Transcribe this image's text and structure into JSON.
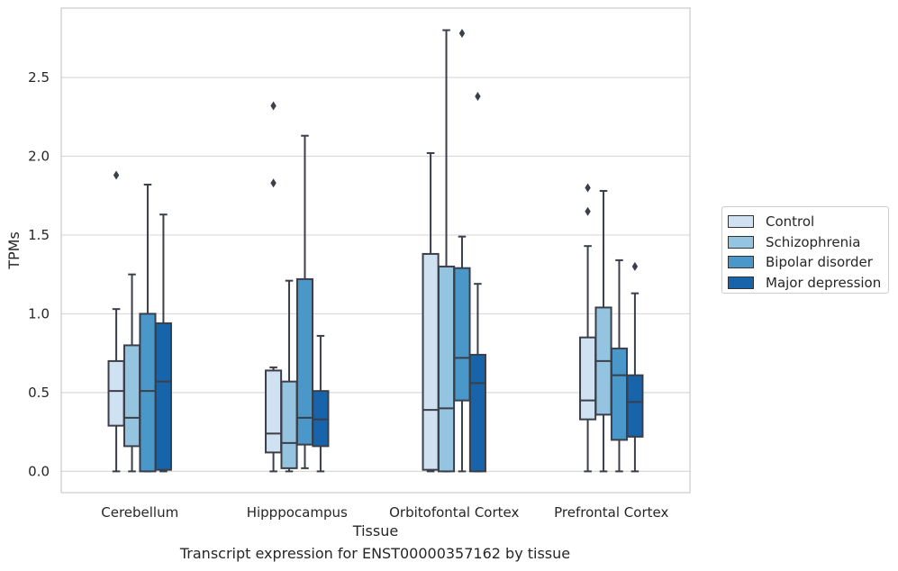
{
  "chart_data": {
    "type": "box",
    "xlabel": "Tissue",
    "ylabel": "TPMs",
    "ylim": [
      -0.135,
      2.94
    ],
    "yticks": [
      0.0,
      0.5,
      1.0,
      1.5,
      2.0,
      2.5
    ],
    "ytick_labels": [
      "0.0",
      "0.5",
      "1.0",
      "1.5",
      "2.0",
      "2.5"
    ],
    "categories": [
      "Cerebellum",
      "Hipppocampus",
      "Orbitofontal Cortex",
      "Prefrontal Cortex"
    ],
    "grid": "horizontal",
    "legend_position": "outside-right",
    "series": [
      {
        "name": "Control",
        "color": "#d0e1f2",
        "boxes": [
          {
            "whislo": 0.0,
            "q1": 0.29,
            "med": 0.51,
            "q3": 0.7,
            "whishi": 1.03,
            "fliers": [
              1.88
            ]
          },
          {
            "whislo": 0.0,
            "q1": 0.12,
            "med": 0.24,
            "q3": 0.64,
            "whishi": 0.66,
            "fliers": [
              1.83,
              2.32
            ]
          },
          {
            "whislo": 0.0,
            "q1": 0.01,
            "med": 0.39,
            "q3": 1.38,
            "whishi": 2.02,
            "fliers": []
          },
          {
            "whislo": 0.0,
            "q1": 0.33,
            "med": 0.45,
            "q3": 0.85,
            "whishi": 1.43,
            "fliers": [
              1.65,
              1.8
            ]
          }
        ]
      },
      {
        "name": "Schizophrenia",
        "color": "#94c4df",
        "boxes": [
          {
            "whislo": 0.0,
            "q1": 0.16,
            "med": 0.34,
            "q3": 0.8,
            "whishi": 1.25,
            "fliers": []
          },
          {
            "whislo": 0.0,
            "q1": 0.02,
            "med": 0.18,
            "q3": 0.57,
            "whishi": 1.21,
            "fliers": []
          },
          {
            "whislo": 0.0,
            "q1": 0.0,
            "med": 0.4,
            "q3": 1.3,
            "whishi": 2.8,
            "fliers": []
          },
          {
            "whislo": 0.0,
            "q1": 0.36,
            "med": 0.7,
            "q3": 1.04,
            "whishi": 1.78,
            "fliers": []
          }
        ]
      },
      {
        "name": "Bipolar disorder",
        "color": "#4a98c9",
        "boxes": [
          {
            "whislo": 0.0,
            "q1": 0.0,
            "med": 0.51,
            "q3": 1.0,
            "whishi": 1.82,
            "fliers": []
          },
          {
            "whislo": 0.02,
            "q1": 0.17,
            "med": 0.34,
            "q3": 1.22,
            "whishi": 2.13,
            "fliers": []
          },
          {
            "whislo": 0.0,
            "q1": 0.45,
            "med": 0.72,
            "q3": 1.29,
            "whishi": 1.49,
            "fliers": [
              2.78
            ]
          },
          {
            "whislo": 0.0,
            "q1": 0.2,
            "med": 0.61,
            "q3": 0.78,
            "whishi": 1.34,
            "fliers": []
          }
        ]
      },
      {
        "name": "Major depression",
        "color": "#1764ab",
        "boxes": [
          {
            "whislo": 0.0,
            "q1": 0.01,
            "med": 0.57,
            "q3": 0.94,
            "whishi": 1.63,
            "fliers": []
          },
          {
            "whislo": 0.0,
            "q1": 0.16,
            "med": 0.33,
            "q3": 0.51,
            "whishi": 0.86,
            "fliers": []
          },
          {
            "whislo": 0.0,
            "q1": 0.0,
            "med": 0.56,
            "q3": 0.74,
            "whishi": 1.19,
            "fliers": [
              2.38
            ]
          },
          {
            "whislo": 0.0,
            "q1": 0.22,
            "med": 0.44,
            "q3": 0.61,
            "whishi": 1.13,
            "fliers": [
              1.3
            ]
          }
        ]
      }
    ]
  },
  "caption": "Transcript expression for ENST00000357162 by tissue"
}
